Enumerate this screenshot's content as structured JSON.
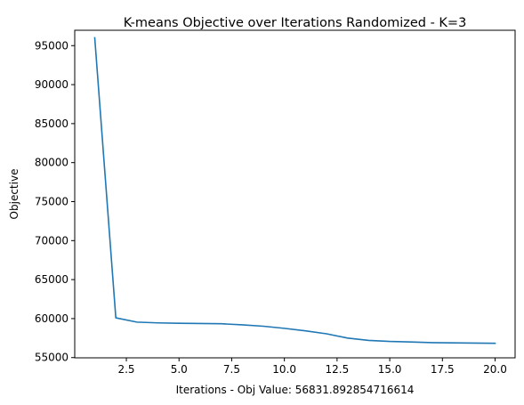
{
  "chart_data": {
    "type": "line",
    "title": "K-means Objective over Iterations Randomized - K=3",
    "xlabel": "Iterations - Obj Value: 56831.892854716614",
    "ylabel": "Objective",
    "xlim": [
      0.05,
      20.95
    ],
    "ylim": [
      54970,
      96970
    ],
    "xticks": [
      2.5,
      5.0,
      7.5,
      10.0,
      12.5,
      15.0,
      17.5,
      20.0
    ],
    "xtick_labels": [
      "2.5",
      "5.0",
      "7.5",
      "10.0",
      "12.5",
      "15.0",
      "17.5",
      "20.0"
    ],
    "yticks": [
      55000,
      60000,
      65000,
      70000,
      75000,
      80000,
      85000,
      90000,
      95000
    ],
    "ytick_labels": [
      "55000",
      "60000",
      "65000",
      "70000",
      "75000",
      "80000",
      "85000",
      "90000",
      "95000"
    ],
    "grid": false,
    "series": [
      {
        "color": "#1f77b4",
        "x": [
          1,
          2,
          3,
          4,
          5,
          6,
          7,
          8,
          9,
          10,
          11,
          12,
          13,
          14,
          15,
          16,
          17,
          18,
          19,
          20
        ],
        "y": [
          96000,
          60100,
          59550,
          59450,
          59400,
          59370,
          59340,
          59200,
          59020,
          58750,
          58430,
          58050,
          57500,
          57200,
          57070,
          57000,
          56920,
          56890,
          56860,
          56832
        ]
      }
    ]
  }
}
